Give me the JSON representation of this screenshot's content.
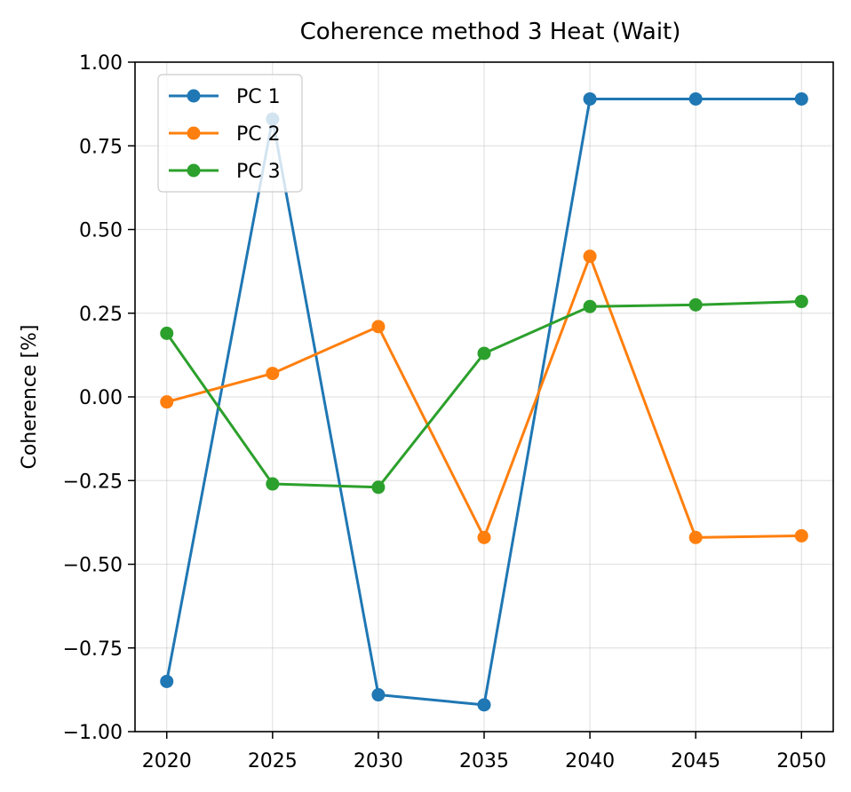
{
  "chart_data": {
    "type": "line",
    "title": "Coherence method 3 Heat (Wait)",
    "xlabel": "",
    "ylabel": "Coherence [%]",
    "x": [
      2020,
      2025,
      2030,
      2035,
      2040,
      2045,
      2050
    ],
    "xticks": [
      "2020",
      "2025",
      "2030",
      "2035",
      "2040",
      "2045",
      "2050"
    ],
    "xlim": [
      2018.5,
      2051.5
    ],
    "ylim": [
      -1.0,
      1.0
    ],
    "yticks": [
      "−1.00",
      "−0.75",
      "−0.50",
      "−0.25",
      "0.00",
      "0.25",
      "0.50",
      "0.75",
      "1.00"
    ],
    "yticks_values": [
      -1.0,
      -0.75,
      -0.5,
      -0.25,
      0.0,
      0.25,
      0.5,
      0.75,
      1.0
    ],
    "grid": true,
    "legend_position": "top-left",
    "series": [
      {
        "name": "PC 1",
        "color": "#1f77b4",
        "values": [
          -0.85,
          0.83,
          -0.89,
          -0.92,
          0.89,
          0.89,
          0.89
        ]
      },
      {
        "name": "PC 2",
        "color": "#ff7f0e",
        "values": [
          -0.015,
          0.07,
          0.21,
          -0.42,
          0.42,
          -0.42,
          -0.415
        ]
      },
      {
        "name": "PC 3",
        "color": "#2ca02c",
        "values": [
          0.19,
          -0.26,
          -0.27,
          0.13,
          0.27,
          0.275,
          0.285
        ]
      }
    ]
  }
}
